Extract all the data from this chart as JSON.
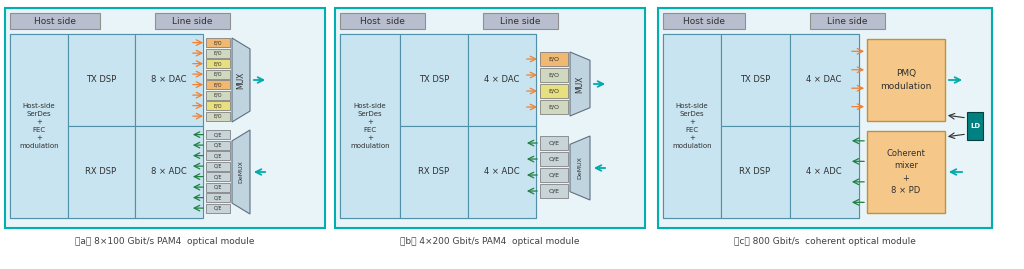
{
  "bg_color": "#ffffff",
  "outer_bg": "#e8f4f8",
  "outer_border": "#00b0b0",
  "blue_area": "#b8dcea",
  "cell_blue": "#c8e4f0",
  "cell_border": "#5090a8",
  "label_bg": "#b8bece",
  "label_border": "#909090",
  "mux_color": "#c0d4e0",
  "mux_border": "#607080",
  "eo_gray": "#c8d4d8",
  "eo_yellow": "#e8e080",
  "eo_orange": "#f0b870",
  "orange_box": "#f5c88a",
  "orange_box_border": "#c09040",
  "teal_box": "#008080",
  "arrow_orange": "#f08030",
  "arrow_green": "#208040",
  "arrow_teal": "#00aaaa",
  "arrow_dark": "#303030",
  "caption_color": "#404040",
  "diagrams": [
    {
      "title": "（a） 8×100 Gbit/s PAM4  optical module",
      "host_label": "Host side",
      "line_label": "Line side",
      "host_text": "Host-side\nSerDes\n+\nFEC\n+\nmodulation",
      "tx_dsp": "TX DSP",
      "rx_dsp": "RX DSP",
      "dac": "8 × DAC",
      "adc": "8 × ADC",
      "mux": "MUX",
      "demux": "DeMUX",
      "eo_count": 8,
      "eo_colors": [
        "#d0d8c0",
        "#e8e080",
        "#d0d8c0",
        "#f0b870",
        "#d0d8c0",
        "#e8e080",
        "#d0d8c0",
        "#f0b870"
      ],
      "oe_colors": [
        "#c8d4d8",
        "#c8d4d8",
        "#c8d4d8",
        "#c8d4d8",
        "#c8d4d8",
        "#c8d4d8",
        "#c8d4d8",
        "#c8d4d8"
      ],
      "type": "pam4"
    },
    {
      "title": "（b） 4×200 Gbit/s PAM4  optical module",
      "host_label": "Host  side",
      "line_label": "Line side",
      "host_text": "Host-side\nSerDes\n+\nFEC\n+\nmodulation",
      "tx_dsp": "TX DSP",
      "rx_dsp": "RX DSP",
      "dac": "4 × DAC",
      "adc": "4 × ADC",
      "mux": "MUX",
      "demux": "DeMUX",
      "eo_count": 4,
      "eo_colors": [
        "#d0d8c0",
        "#e8e080",
        "#d0d8c0",
        "#f0b870"
      ],
      "oe_colors": [
        "#c8d4d8",
        "#c8d4d8",
        "#c8d4d8",
        "#c8d4d8"
      ],
      "type": "pam4"
    },
    {
      "title": "（c） 800 Gbit/s  coherent optical module",
      "host_label": "Host side",
      "line_label": "Line side",
      "host_text": "Host-side\nSerDes\n+\nFEC\n+\nmodulation",
      "tx_dsp": "TX DSP",
      "rx_dsp": "RX DSP",
      "dac": "4 × DAC",
      "adc": "4 × ADC",
      "pmq_text": "PMQ\nmodulation",
      "coherent_text": "Coherent\nmixer\n+\n8 × PD",
      "ld_text": "LD",
      "type": "coherent"
    }
  ]
}
